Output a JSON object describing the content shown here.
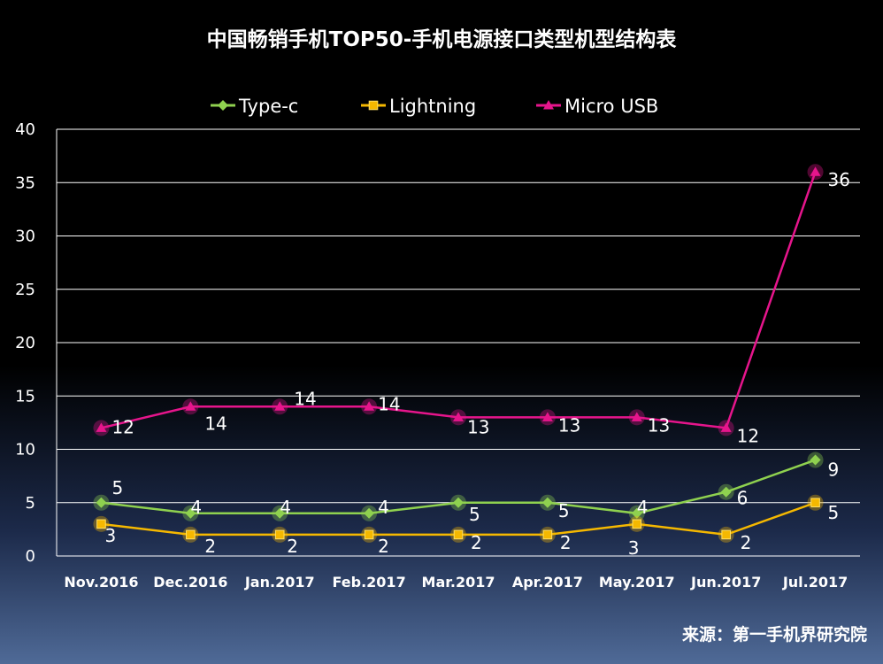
{
  "chart_data": {
    "type": "line",
    "title": "中国畅销手机TOP50-手机电源接口类型机型结构表",
    "categories": [
      "Nov.2016",
      "Dec.2016",
      "Jan.2017",
      "Feb.2017",
      "Mar.2017",
      "Apr.2017",
      "May.2017",
      "Jun.2017",
      "Jul.2017"
    ],
    "ylim": [
      0,
      40
    ],
    "yticks": [
      0,
      5,
      10,
      15,
      20,
      25,
      30,
      35,
      40
    ],
    "grid": true,
    "legend_position": "top",
    "series": [
      {
        "name": "Type-c",
        "color": "#8fd14f",
        "marker": "diamond",
        "values": [
          5,
          4,
          4,
          4,
          5,
          5,
          4,
          6,
          9
        ]
      },
      {
        "name": "Lightning",
        "color": "#f5b800",
        "marker": "square",
        "values": [
          3,
          2,
          2,
          2,
          2,
          2,
          3,
          2,
          5
        ]
      },
      {
        "name": "Micro USB",
        "color": "#e6158c",
        "marker": "triangle",
        "values": [
          12,
          14,
          14,
          14,
          13,
          13,
          13,
          12,
          36
        ]
      }
    ]
  },
  "source": "来源：第一手机界研究院"
}
